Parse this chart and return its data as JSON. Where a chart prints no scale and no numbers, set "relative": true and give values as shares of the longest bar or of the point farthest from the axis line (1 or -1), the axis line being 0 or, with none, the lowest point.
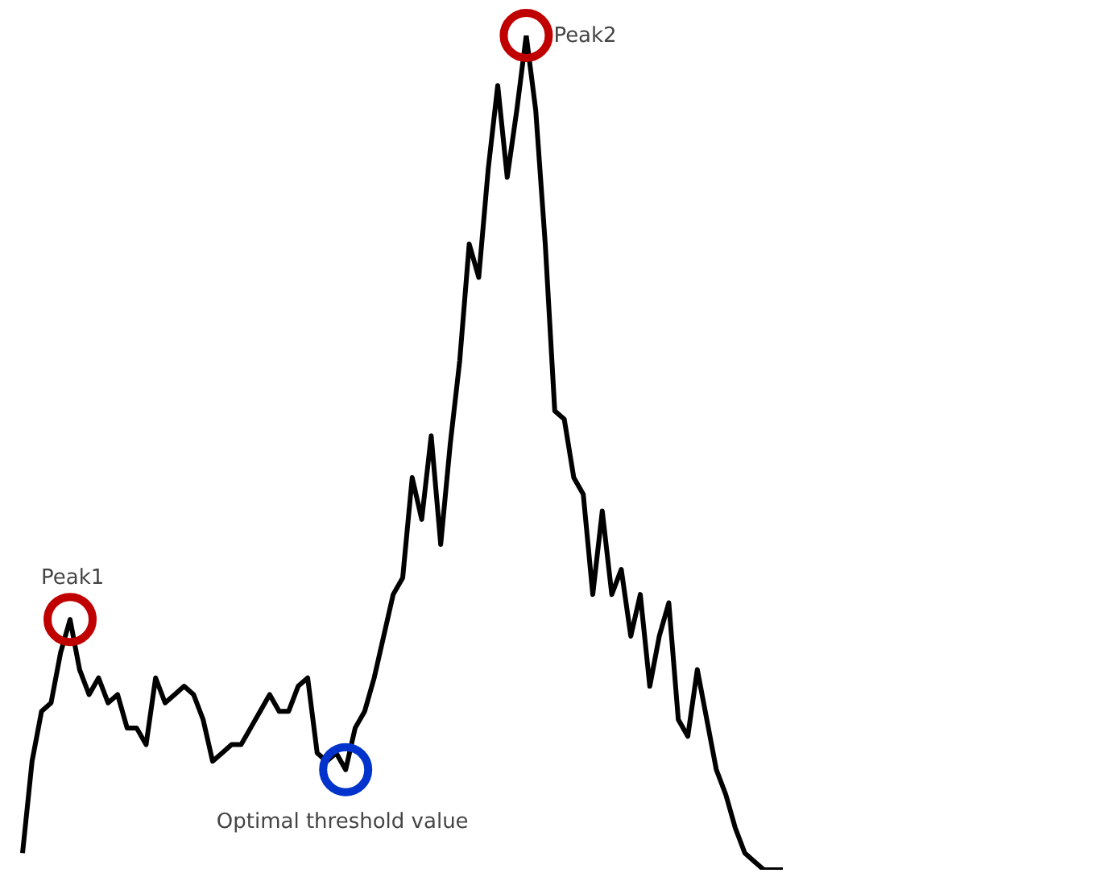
{
  "chart_data": {
    "type": "line",
    "relative": true,
    "color": "#000000",
    "categories": [
      null,
      null,
      null,
      null,
      null,
      null,
      null,
      null,
      null,
      null,
      null,
      null,
      null,
      null,
      null,
      null,
      null,
      null,
      null,
      null,
      null,
      null,
      null,
      null,
      null,
      null,
      null,
      null,
      null,
      null,
      null,
      null,
      null,
      null,
      null,
      null,
      null,
      null,
      null,
      null,
      null,
      null,
      null,
      null,
      null,
      null,
      null,
      null,
      null,
      null,
      null,
      null,
      null,
      null,
      null,
      null,
      null,
      null,
      null,
      null,
      null,
      null,
      null,
      null,
      null,
      null,
      null,
      null,
      null,
      null,
      null,
      null,
      null,
      null,
      null,
      null,
      null,
      null,
      null,
      null,
      null
    ],
    "values": [
      0.02,
      0.13,
      0.19,
      0.2,
      0.26,
      0.3,
      0.24,
      0.21,
      0.23,
      0.2,
      0.21,
      0.17,
      0.17,
      0.15,
      0.23,
      0.2,
      0.21,
      0.22,
      0.21,
      0.18,
      0.13,
      0.14,
      0.15,
      0.15,
      0.17,
      0.19,
      0.21,
      0.19,
      0.19,
      0.22,
      0.23,
      0.14,
      0.13,
      0.14,
      0.12,
      0.17,
      0.19,
      0.23,
      0.28,
      0.33,
      0.35,
      0.47,
      0.42,
      0.52,
      0.39,
      0.51,
      0.61,
      0.75,
      0.71,
      0.84,
      0.94,
      0.83,
      0.91,
      1.0,
      0.91,
      0.75,
      0.55,
      0.54,
      0.47,
      0.45,
      0.33,
      0.43,
      0.33,
      0.36,
      0.28,
      0.33,
      0.22,
      0.28,
      0.32,
      0.18,
      0.16,
      0.24,
      0.18,
      0.12,
      0.09,
      0.05,
      0.02,
      0.01,
      0,
      0,
      0
    ],
    "annotations": [
      {
        "text": "Peak1",
        "y": 0.3
      },
      "Peak2",
      {
        "text": "Optimal threshold value",
        "y": 0.12
      }
    ]
  }
}
